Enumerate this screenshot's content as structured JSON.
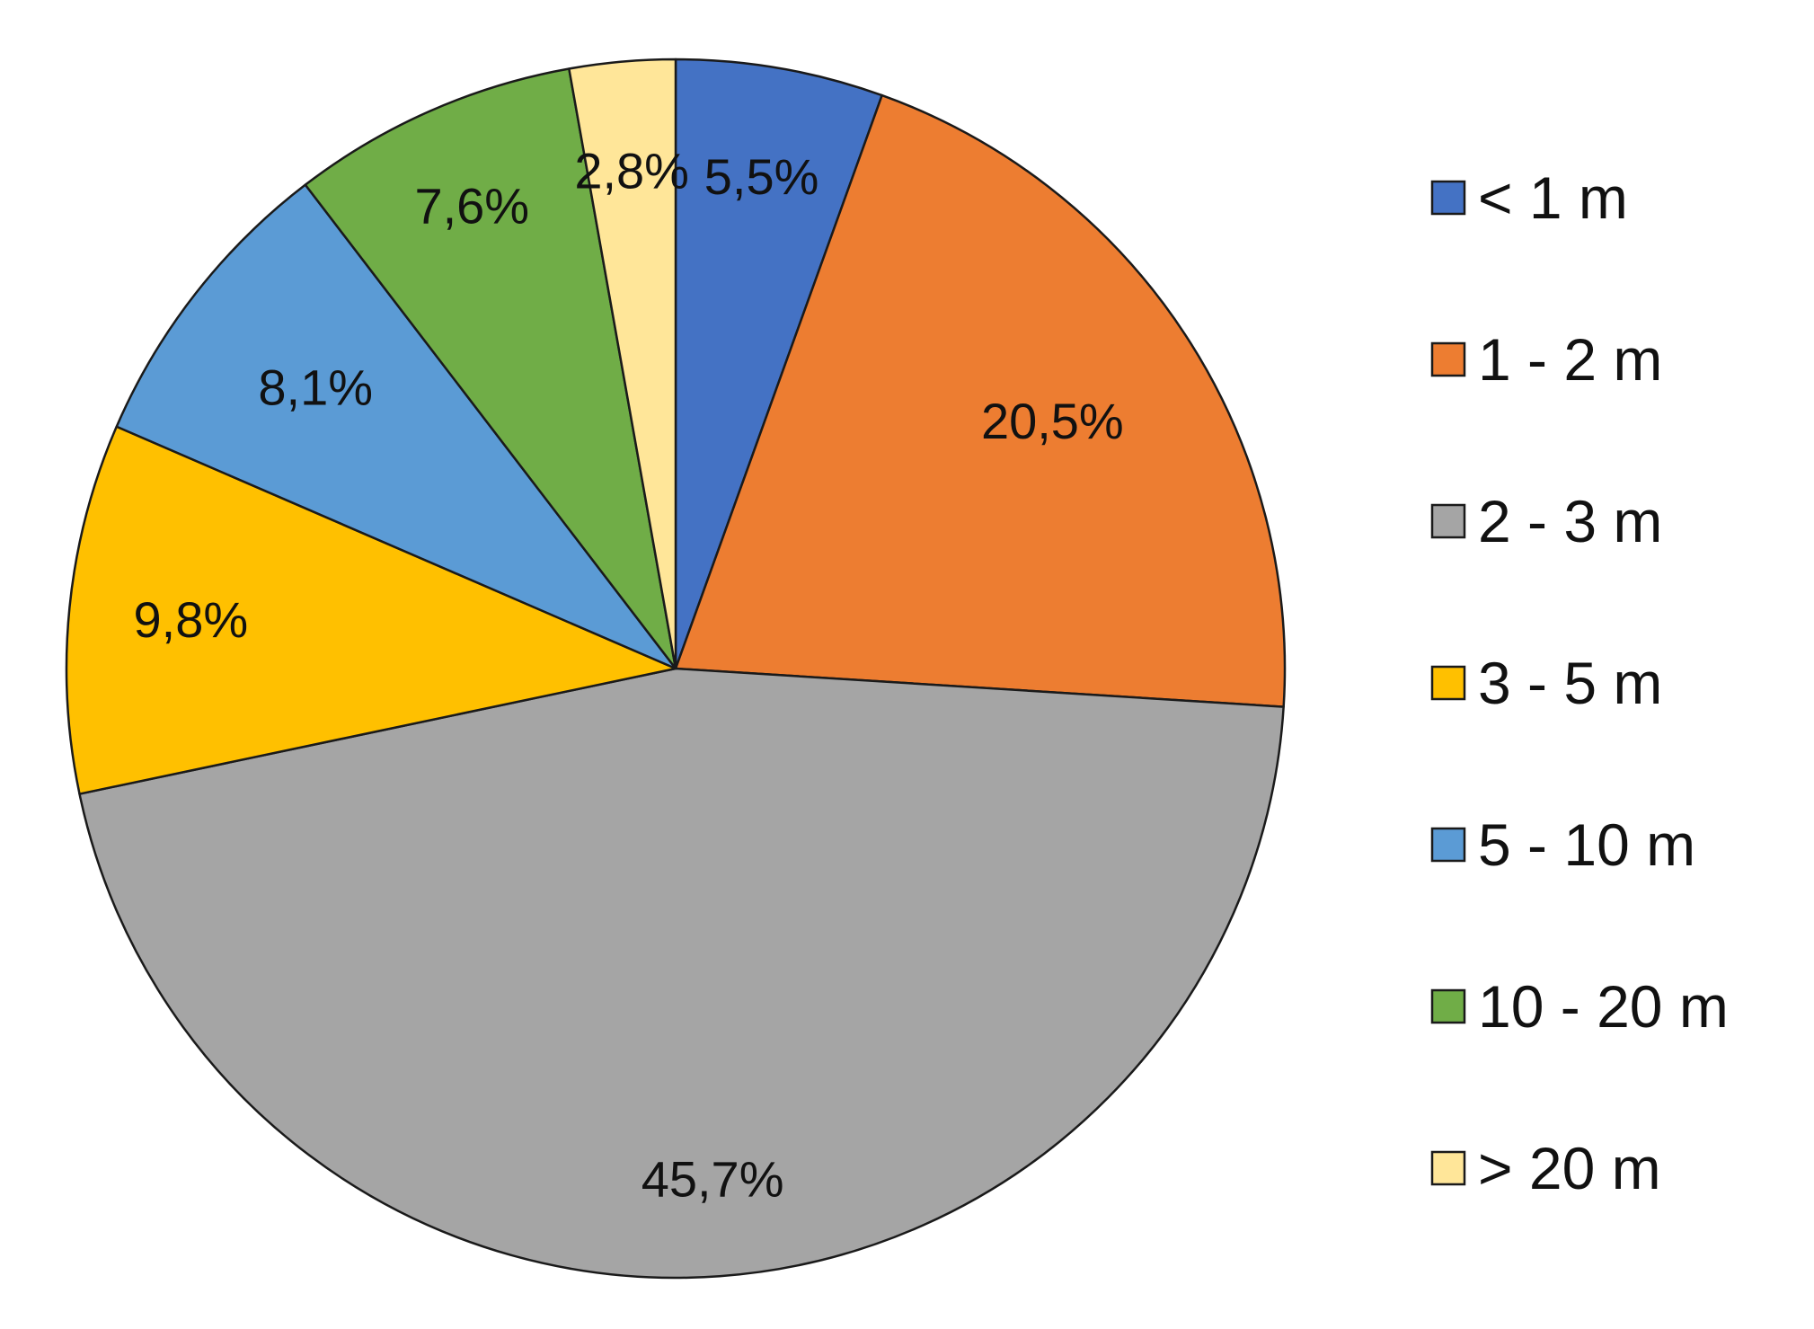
{
  "chart_data": {
    "type": "pie",
    "title": "",
    "categories": [
      "< 1 m",
      "1 - 2 m",
      "2 - 3 m",
      "3 - 5 m",
      "5 - 10 m",
      "10 - 20 m",
      "> 20 m"
    ],
    "values": [
      5.5,
      20.5,
      45.7,
      9.8,
      8.1,
      7.6,
      2.8
    ],
    "data_labels": [
      "5,5%",
      "20,5%",
      "45,7%",
      "9,8%",
      "8,1%",
      "7,6%",
      "2,8%"
    ],
    "colors": [
      "#4472C4",
      "#ED7D31",
      "#A5A5A5",
      "#FFC000",
      "#5B9BD5",
      "#70AD47",
      "#FFE699"
    ],
    "start_angle_deg": 0,
    "direction": "clockwise",
    "legend_position": "right"
  }
}
